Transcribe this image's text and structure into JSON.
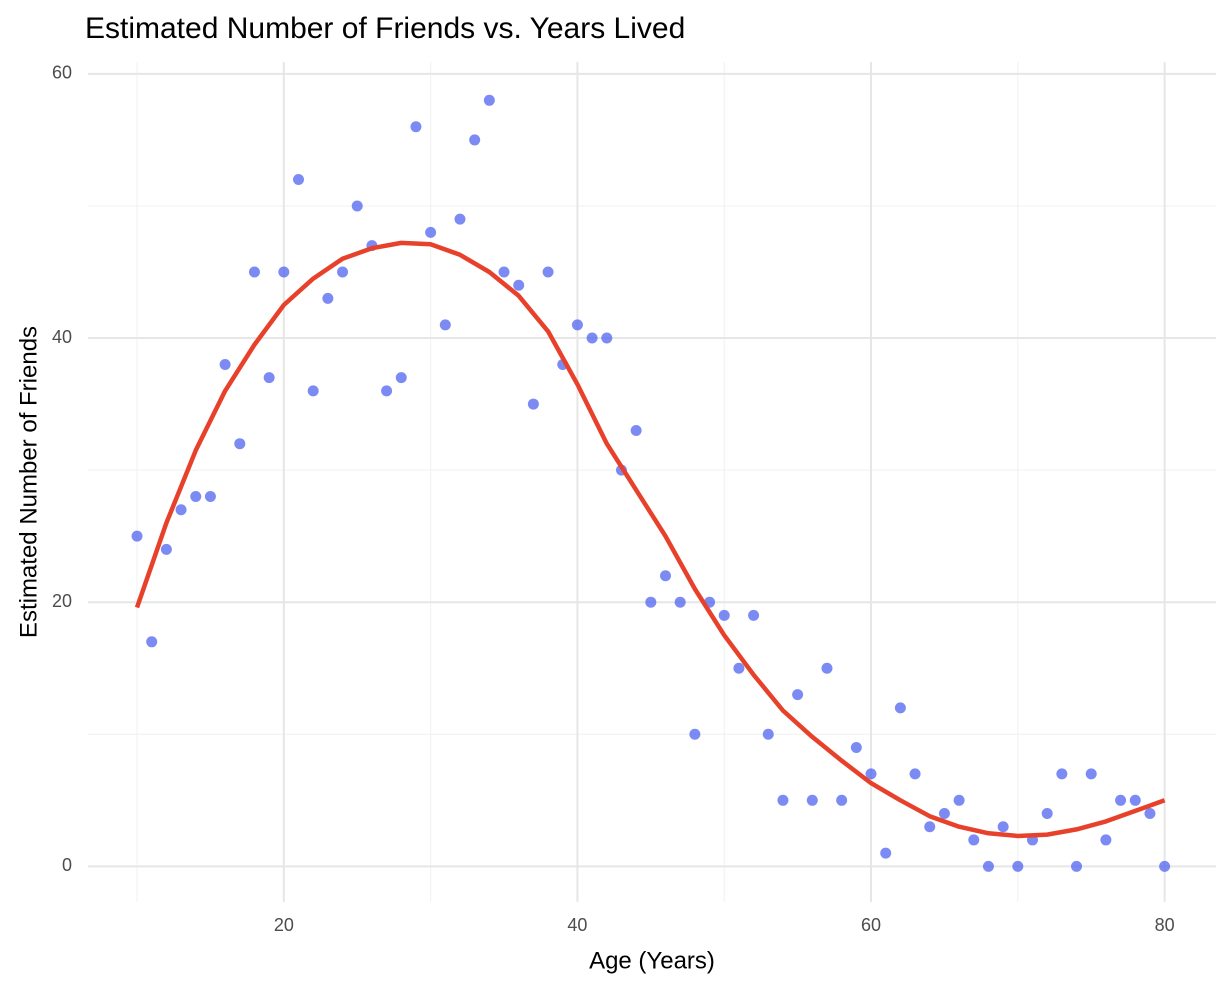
{
  "chart_data": {
    "type": "scatter",
    "title": "Estimated Number of Friends vs. Years Lived",
    "x_label": "Age (Years)",
    "y_label": "Estimated Number of Friends",
    "points": {
      "color": "#4a5ef0",
      "x": [
        10,
        11,
        12,
        13,
        14,
        15,
        16,
        17,
        18,
        19,
        20,
        21,
        22,
        23,
        24,
        25,
        26,
        27,
        28,
        29,
        30,
        31,
        32,
        33,
        34,
        35,
        36,
        37,
        38,
        39,
        40,
        41,
        42,
        43,
        44,
        45,
        46,
        47,
        48,
        49,
        50,
        51,
        52,
        53,
        54,
        55,
        56,
        57,
        58,
        59,
        60,
        61,
        62,
        63,
        64,
        65,
        66,
        67,
        68,
        69,
        70,
        71,
        72,
        73,
        74,
        75,
        76,
        77,
        78,
        79,
        80
      ],
      "y": [
        25,
        17,
        24,
        27,
        28,
        28,
        38,
        32,
        45,
        37,
        45,
        52,
        36,
        43,
        45,
        50,
        47,
        36,
        37,
        56,
        48,
        41,
        49,
        55,
        58,
        45,
        44,
        35,
        45,
        38,
        41,
        40,
        40,
        30,
        33,
        20,
        22,
        20,
        10,
        20,
        19,
        15,
        19,
        10,
        5,
        13,
        5,
        15,
        5,
        9,
        7,
        1,
        12,
        7,
        3,
        4,
        5,
        2,
        0,
        3,
        0,
        2,
        4,
        7,
        0,
        7,
        2,
        5,
        5,
        4,
        0
      ]
    },
    "smooth": {
      "color": "#e8412b",
      "x": [
        10,
        12,
        14,
        16,
        18,
        20,
        22,
        24,
        26,
        28,
        30,
        32,
        34,
        36,
        38,
        40,
        42,
        44,
        46,
        48,
        50,
        52,
        54,
        56,
        58,
        60,
        62,
        64,
        66,
        68,
        70,
        72,
        74,
        76,
        78,
        80
      ],
      "y": [
        19.6,
        26,
        31.5,
        36,
        39.5,
        42.5,
        44.5,
        46,
        46.8,
        47.2,
        47.1,
        46.3,
        45,
        43.2,
        40.5,
        36.5,
        32,
        28.5,
        25,
        21,
        17.5,
        14.5,
        11.8,
        9.8,
        8,
        6.3,
        5,
        3.8,
        3,
        2.5,
        2.3,
        2.4,
        2.8,
        3.4,
        4.2,
        5
      ]
    },
    "xlim": [
      6.66,
      83.5
    ],
    "ylim": [
      -2.7,
      60.9
    ],
    "xticks": [
      20,
      40,
      60,
      80
    ],
    "yticks": [
      0,
      20,
      40,
      60
    ],
    "xminor": [
      10,
      30,
      50,
      70
    ],
    "yminor": [
      10,
      30,
      50
    ],
    "grid": true
  }
}
